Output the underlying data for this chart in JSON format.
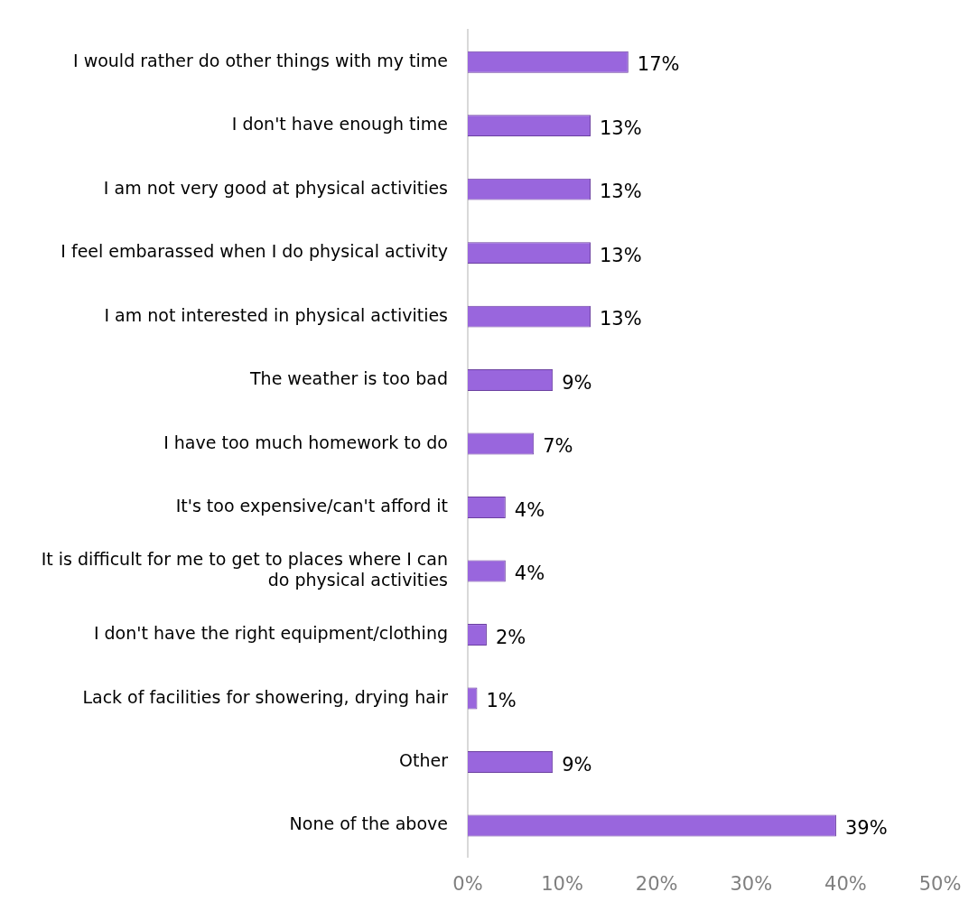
{
  "chart_data": {
    "type": "bar",
    "orientation": "horizontal",
    "categories": [
      "I would rather do other things with my time",
      "I don't have enough time",
      "I am not very good at physical activities",
      "I feel embarassed when I do physical activity",
      "I am not interested in physical activities",
      "The weather is too bad",
      "I have too much homework to do",
      "It's too expensive/can't afford it",
      "It is difficult for me to get to places where I can do physical activities",
      "I don't have the right equipment/clothing",
      "Lack of facilities for showering, drying hair",
      "Other",
      "None of the above"
    ],
    "values": [
      17,
      13,
      13,
      13,
      13,
      9,
      7,
      4,
      4,
      2,
      1,
      9,
      39
    ],
    "value_labels": [
      "17%",
      "13%",
      "13%",
      "13%",
      "13%",
      "9%",
      "7%",
      "4%",
      "4%",
      "2%",
      "1%",
      "9%",
      "39%"
    ],
    "color": "#9966dd",
    "xlim": [
      0,
      50
    ],
    "xticks": [
      {
        "value": 0,
        "label": "0%"
      },
      {
        "value": 10,
        "label": "10%"
      },
      {
        "value": 20,
        "label": "20%"
      },
      {
        "value": 30,
        "label": "30%"
      },
      {
        "value": 40,
        "label": "40%"
      },
      {
        "value": 50,
        "label": "50%"
      }
    ]
  }
}
